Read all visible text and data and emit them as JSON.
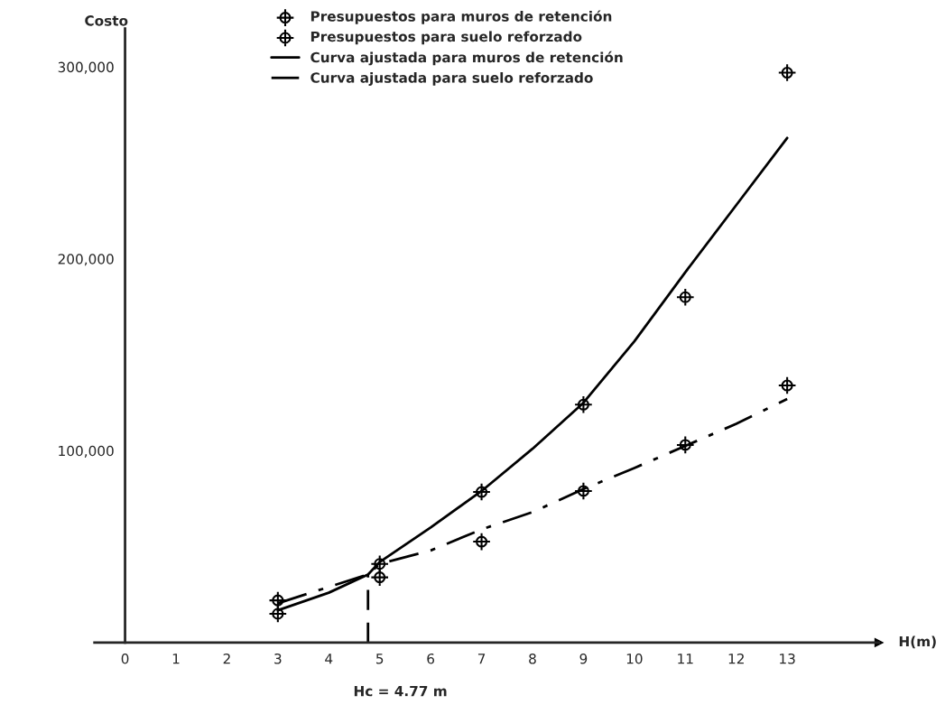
{
  "chart_data": {
    "type": "scatter",
    "xlabel": "H(m)",
    "ylabel": "Costo",
    "xlim": [
      -0.6,
      14.8
    ],
    "ylim": [
      0,
      320000
    ],
    "xticks": [
      0,
      1,
      2,
      3,
      4,
      5,
      6,
      7,
      8,
      9,
      10,
      11,
      12,
      13
    ],
    "yticks": [
      {
        "value": 100000,
        "label": "100,000"
      },
      {
        "value": 200000,
        "label": "200,000"
      },
      {
        "value": 300000,
        "label": "300,000"
      }
    ],
    "grid": false,
    "legend": "top",
    "series": [
      {
        "name": "Presupuestos para muros de retención",
        "marker": "cross",
        "color": "#000000",
        "x": [
          3,
          5,
          7,
          9,
          11,
          13
        ],
        "values": [
          15000,
          41000,
          78500,
          124000,
          180000,
          297000
        ]
      },
      {
        "name": "Presupuestos para suelo reforzado",
        "marker": "cross",
        "color": "#000000",
        "x": [
          3,
          5,
          7,
          9,
          11,
          13
        ],
        "values": [
          22000,
          34000,
          52600,
          79000,
          103000,
          134000
        ]
      },
      {
        "name": "Curva ajustada para muros de retención",
        "type": "line",
        "line_style": "solid",
        "color": "#000000",
        "x": [
          3,
          4,
          4.77,
          5,
          6,
          7,
          8,
          9,
          10,
          11,
          12,
          13
        ],
        "values": [
          16800,
          26000,
          35500,
          42000,
          60000,
          79000,
          101000,
          125000,
          157000,
          193000,
          228000,
          263000
        ]
      },
      {
        "name": "Curva ajustada para suelo reforzado",
        "type": "line",
        "line_style": "dashdot",
        "color": "#000000",
        "x": [
          3,
          4,
          4.77,
          5,
          6,
          7,
          8,
          9,
          10,
          11,
          12,
          13
        ],
        "values": [
          20500,
          29000,
          35500,
          41000,
          48000,
          59000,
          68000,
          80000,
          91000,
          102500,
          114000,
          127000
        ]
      },
      {
        "type": "line",
        "line_style": "dashed",
        "color": "#000000",
        "x": [
          4.77,
          4.77
        ],
        "values": [
          0,
          35500
        ]
      }
    ],
    "annotations": [
      "Hc = 4.77 m"
    ]
  }
}
